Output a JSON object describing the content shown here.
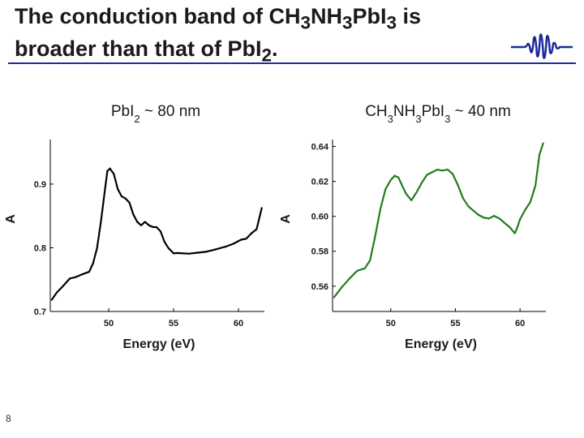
{
  "slide": {
    "title_line1_parts": [
      "The conduction band of CH",
      "3",
      "NH",
      "3",
      "PbI",
      "3",
      " is"
    ],
    "title_line2_parts": [
      "broader than that of PbI",
      "2",
      "."
    ],
    "slide_number": "8",
    "accent_color": "#1f2a9a"
  },
  "chart_data": [
    {
      "type": "line",
      "title_parts": [
        "PbI",
        "2",
        " ~ 80 nm"
      ],
      "xlabel": "Energy (eV)",
      "ylabel": "A",
      "xlim": [
        45.5,
        62
      ],
      "ylim": [
        0.7,
        0.97
      ],
      "xticks": [
        50,
        55,
        60
      ],
      "xtick_labels": [
        "50",
        "55",
        "60"
      ],
      "yticks": [
        0.7,
        0.8,
        0.9
      ],
      "ytick_labels": [
        "0.7",
        "0.8",
        "0.9"
      ],
      "grid": false,
      "color": "#000000",
      "series": [
        {
          "name": "PbI2",
          "x": [
            45.6,
            46.0,
            46.5,
            47.0,
            47.5,
            48.0,
            48.5,
            48.8,
            49.1,
            49.4,
            49.7,
            49.9,
            50.1,
            50.4,
            50.7,
            51.0,
            51.3,
            51.6,
            51.9,
            52.2,
            52.5,
            52.8,
            53.1,
            53.4,
            53.7,
            54.0,
            54.3,
            54.6,
            55.0,
            55.3,
            55.7,
            56.2,
            56.8,
            57.5,
            58.2,
            59.0,
            59.6,
            60.2,
            60.6,
            61.0,
            61.4,
            61.8
          ],
          "y": [
            0.718,
            0.729,
            0.741,
            0.751,
            0.755,
            0.758,
            0.763,
            0.775,
            0.8,
            0.84,
            0.89,
            0.92,
            0.925,
            0.915,
            0.893,
            0.88,
            0.878,
            0.87,
            0.853,
            0.84,
            0.836,
            0.84,
            0.836,
            0.832,
            0.833,
            0.825,
            0.81,
            0.799,
            0.792,
            0.791,
            0.792,
            0.79,
            0.793,
            0.793,
            0.798,
            0.801,
            0.807,
            0.812,
            0.815,
            0.822,
            0.83,
            0.863
          ]
        }
      ]
    },
    {
      "type": "line",
      "title_parts": [
        "CH",
        "3",
        "NH",
        "3",
        "PbI",
        "3",
        " ~ 40 nm"
      ],
      "xlabel": "Energy (eV)",
      "ylabel": "A",
      "xlim": [
        45.5,
        62
      ],
      "ylim": [
        0.5455,
        0.644
      ],
      "xticks": [
        50,
        55,
        60
      ],
      "xtick_labels": [
        "50",
        "55",
        "60"
      ],
      "yticks": [
        0.56,
        0.58,
        0.6,
        0.62,
        0.64
      ],
      "ytick_labels": [
        "0.56",
        "0.58",
        "0.60",
        "0.62",
        "0.64"
      ],
      "grid": false,
      "color": "#1e7d1e",
      "series": [
        {
          "name": "CH3NH3PbI3",
          "x": [
            45.6,
            46.2,
            46.8,
            47.4,
            48.0,
            48.4,
            48.8,
            49.2,
            49.6,
            50.0,
            50.3,
            50.6,
            50.9,
            51.2,
            51.6,
            52.0,
            52.4,
            52.8,
            53.2,
            53.6,
            54.0,
            54.4,
            54.8,
            55.2,
            55.6,
            56.0,
            56.4,
            56.8,
            57.2,
            57.6,
            58.0,
            58.4,
            58.8,
            59.2,
            59.6,
            59.8,
            60.0,
            60.4,
            60.8,
            61.2,
            61.5,
            61.8
          ],
          "y": [
            0.5535,
            0.559,
            0.5645,
            0.5685,
            0.5705,
            0.5745,
            0.589,
            0.604,
            0.616,
            0.6205,
            0.6235,
            0.622,
            0.6175,
            0.6125,
            0.6095,
            0.6135,
            0.6195,
            0.6235,
            0.6255,
            0.6265,
            0.6265,
            0.6265,
            0.6245,
            0.6175,
            0.6105,
            0.6055,
            0.6035,
            0.6005,
            0.5995,
            0.5985,
            0.6005,
            0.5985,
            0.5965,
            0.5935,
            0.5905,
            0.5935,
            0.5985,
            0.6035,
            0.6085,
            0.6175,
            0.6355,
            0.642
          ]
        }
      ]
    }
  ]
}
